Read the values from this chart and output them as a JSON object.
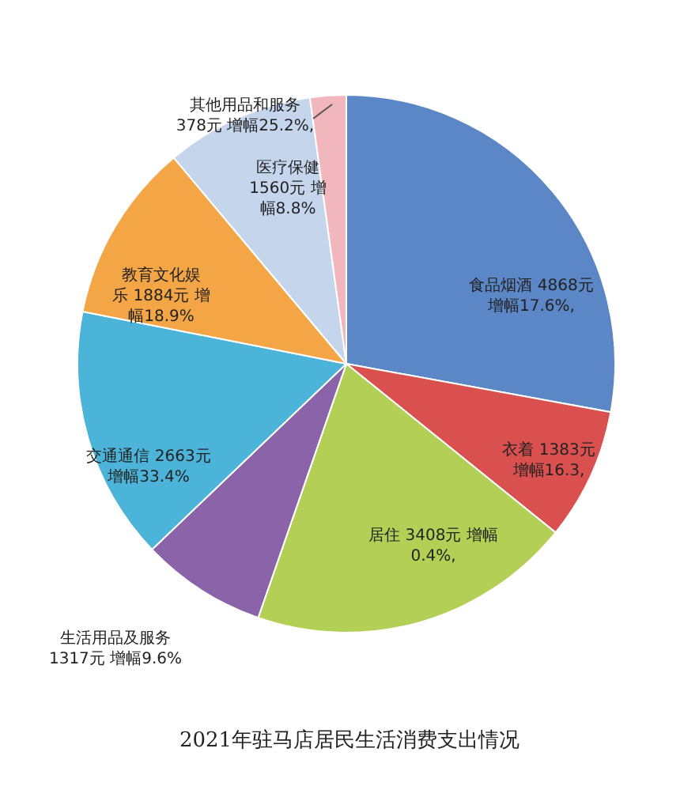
{
  "chart_data": {
    "type": "pie",
    "title": "2021年驻马店居民生活消费支出情况",
    "categories": [
      "食品烟酒",
      "衣着",
      "居住",
      "生活用品及服务",
      "交通通信",
      "教育文化娱乐",
      "医疗保健",
      "其他用品和服务"
    ],
    "values": [
      4868,
      1383,
      3408,
      1317,
      2663,
      1884,
      1560,
      378
    ],
    "value_labels": [
      "4868元增幅17.6%,",
      "1383元增幅16.3,",
      "3408元 增幅0.4%,",
      "1317元 增幅9.6%",
      "2663元增幅33.4%",
      "1884元 增幅18.9%",
      "1560元 增幅8.8%",
      "378元 增幅25.2%,"
    ],
    "colors": [
      "#5b87c6",
      "#d9504e",
      "#b3cf55",
      "#8a63a8",
      "#4cb4d8",
      "#f4a545",
      "#c5d5ec",
      "#f2b6bd"
    ]
  }
}
